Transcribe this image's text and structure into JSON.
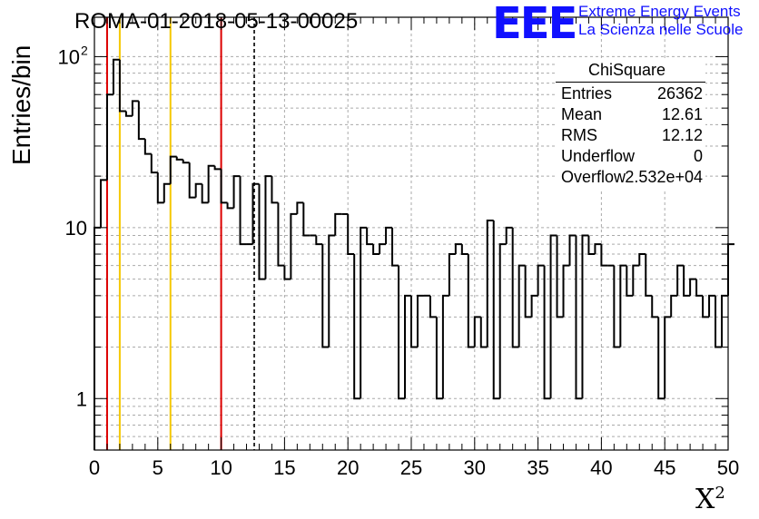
{
  "title": "ROMA-01-2018-05-13-00025",
  "logo": {
    "mark": "EEE",
    "line1": "Extreme Energy Events",
    "line2": "La Scienza nelle Scuole",
    "color": "#1010ff"
  },
  "stats_box": {
    "title": "ChiSquare",
    "rows": [
      {
        "label": "Entries",
        "value": "26362"
      },
      {
        "label": "Mean",
        "value": "12.61"
      },
      {
        "label": "RMS",
        "value": "12.12"
      },
      {
        "label": "Underflow",
        "value": "0"
      },
      {
        "label": "Overflow",
        "value": "2.532e+04"
      }
    ]
  },
  "chart_data": {
    "type": "histogram",
    "ylabel": "Entries/bin",
    "xlabel": "X",
    "xlabel_sup": "2",
    "xlim": [
      0,
      50
    ],
    "ylim": [
      0.5,
      170
    ],
    "yscale": "log",
    "x_ticks": [
      "0",
      "5",
      "10",
      "15",
      "20",
      "25",
      "30",
      "35",
      "40",
      "45",
      "50"
    ],
    "y_ticks": [
      {
        "value": 1,
        "label": "1"
      },
      {
        "value": 10,
        "label": "10"
      },
      {
        "value": 100,
        "label": "10",
        "sup": "2"
      }
    ],
    "grid": true,
    "bin_width": 0.5,
    "bin_counts": [
      10,
      19,
      60,
      96,
      48,
      45,
      55,
      33,
      27,
      21,
      14,
      18,
      26,
      25,
      24,
      15,
      18,
      14,
      23,
      22,
      14,
      13,
      20,
      8,
      8,
      18,
      5,
      20,
      14,
      6,
      5,
      12,
      14,
      9,
      9,
      8,
      2,
      9,
      12,
      12,
      7,
      1,
      10,
      8,
      7,
      8,
      10,
      6,
      1,
      4,
      2,
      4,
      4,
      3,
      1,
      4,
      7,
      8,
      7,
      2,
      3,
      2,
      11,
      1,
      8,
      10,
      2,
      6,
      3,
      4,
      6,
      1,
      9,
      3,
      6,
      9,
      1,
      9,
      7,
      8,
      6,
      6,
      2,
      6,
      4,
      6,
      7,
      4,
      3,
      1,
      3,
      4,
      6,
      4,
      5,
      4,
      3,
      4,
      2,
      4,
      8
    ],
    "vertical_lines": [
      {
        "x": 1.0,
        "color": "#dd0000",
        "style": "solid"
      },
      {
        "x": 2.0,
        "color": "#f5c800",
        "style": "solid"
      },
      {
        "x": 6.0,
        "color": "#f5c800",
        "style": "solid"
      },
      {
        "x": 10.0,
        "color": "#dd0000",
        "style": "solid"
      },
      {
        "x": 12.61,
        "color": "#000000",
        "style": "dashed"
      }
    ]
  }
}
